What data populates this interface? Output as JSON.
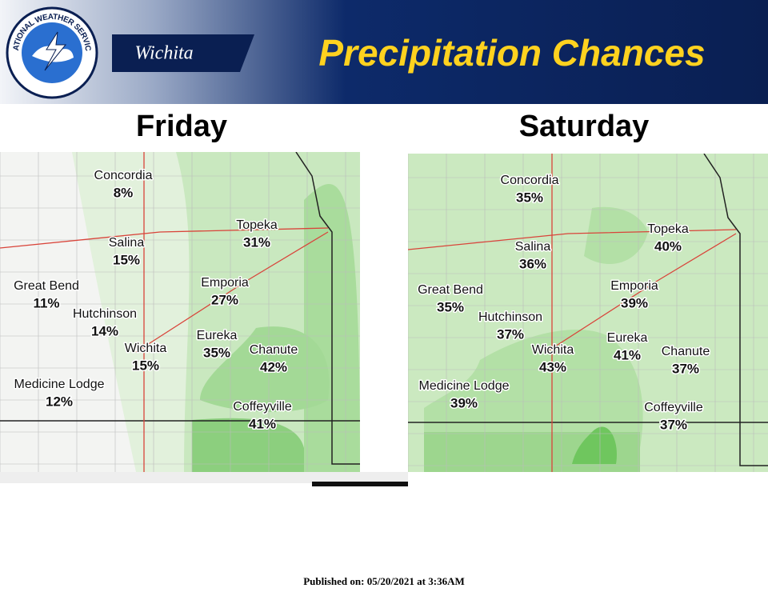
{
  "header": {
    "logo_text": "NATIONAL WEATHER SERVICE",
    "office": "Wichita",
    "title": "Precipitation Chances"
  },
  "panels": [
    {
      "day": "Friday",
      "cities": [
        {
          "name": "Concordia",
          "chance": "8%"
        },
        {
          "name": "Salina",
          "chance": "15%"
        },
        {
          "name": "Great Bend",
          "chance": "11%"
        },
        {
          "name": "Hutchinson",
          "chance": "14%"
        },
        {
          "name": "Wichita",
          "chance": "15%"
        },
        {
          "name": "Medicine Lodge",
          "chance": "12%"
        },
        {
          "name": "Topeka",
          "chance": "31%"
        },
        {
          "name": "Emporia",
          "chance": "27%"
        },
        {
          "name": "Eureka",
          "chance": "35%"
        },
        {
          "name": "Chanute",
          "chance": "42%"
        },
        {
          "name": "Coffeyville",
          "chance": "41%"
        }
      ]
    },
    {
      "day": "Saturday",
      "cities": [
        {
          "name": "Concordia",
          "chance": "35%"
        },
        {
          "name": "Salina",
          "chance": "36%"
        },
        {
          "name": "Great Bend",
          "chance": "35%"
        },
        {
          "name": "Hutchinson",
          "chance": "37%"
        },
        {
          "name": "Wichita",
          "chance": "43%"
        },
        {
          "name": "Medicine Lodge",
          "chance": "39%"
        },
        {
          "name": "Topeka",
          "chance": "40%"
        },
        {
          "name": "Emporia",
          "chance": "39%"
        },
        {
          "name": "Eureka",
          "chance": "41%"
        },
        {
          "name": "Chanute",
          "chance": "37%"
        },
        {
          "name": "Coffeyville",
          "chance": "37%"
        }
      ]
    }
  ],
  "footer": "Published on: 05/20/2021 at 3:36AM"
}
